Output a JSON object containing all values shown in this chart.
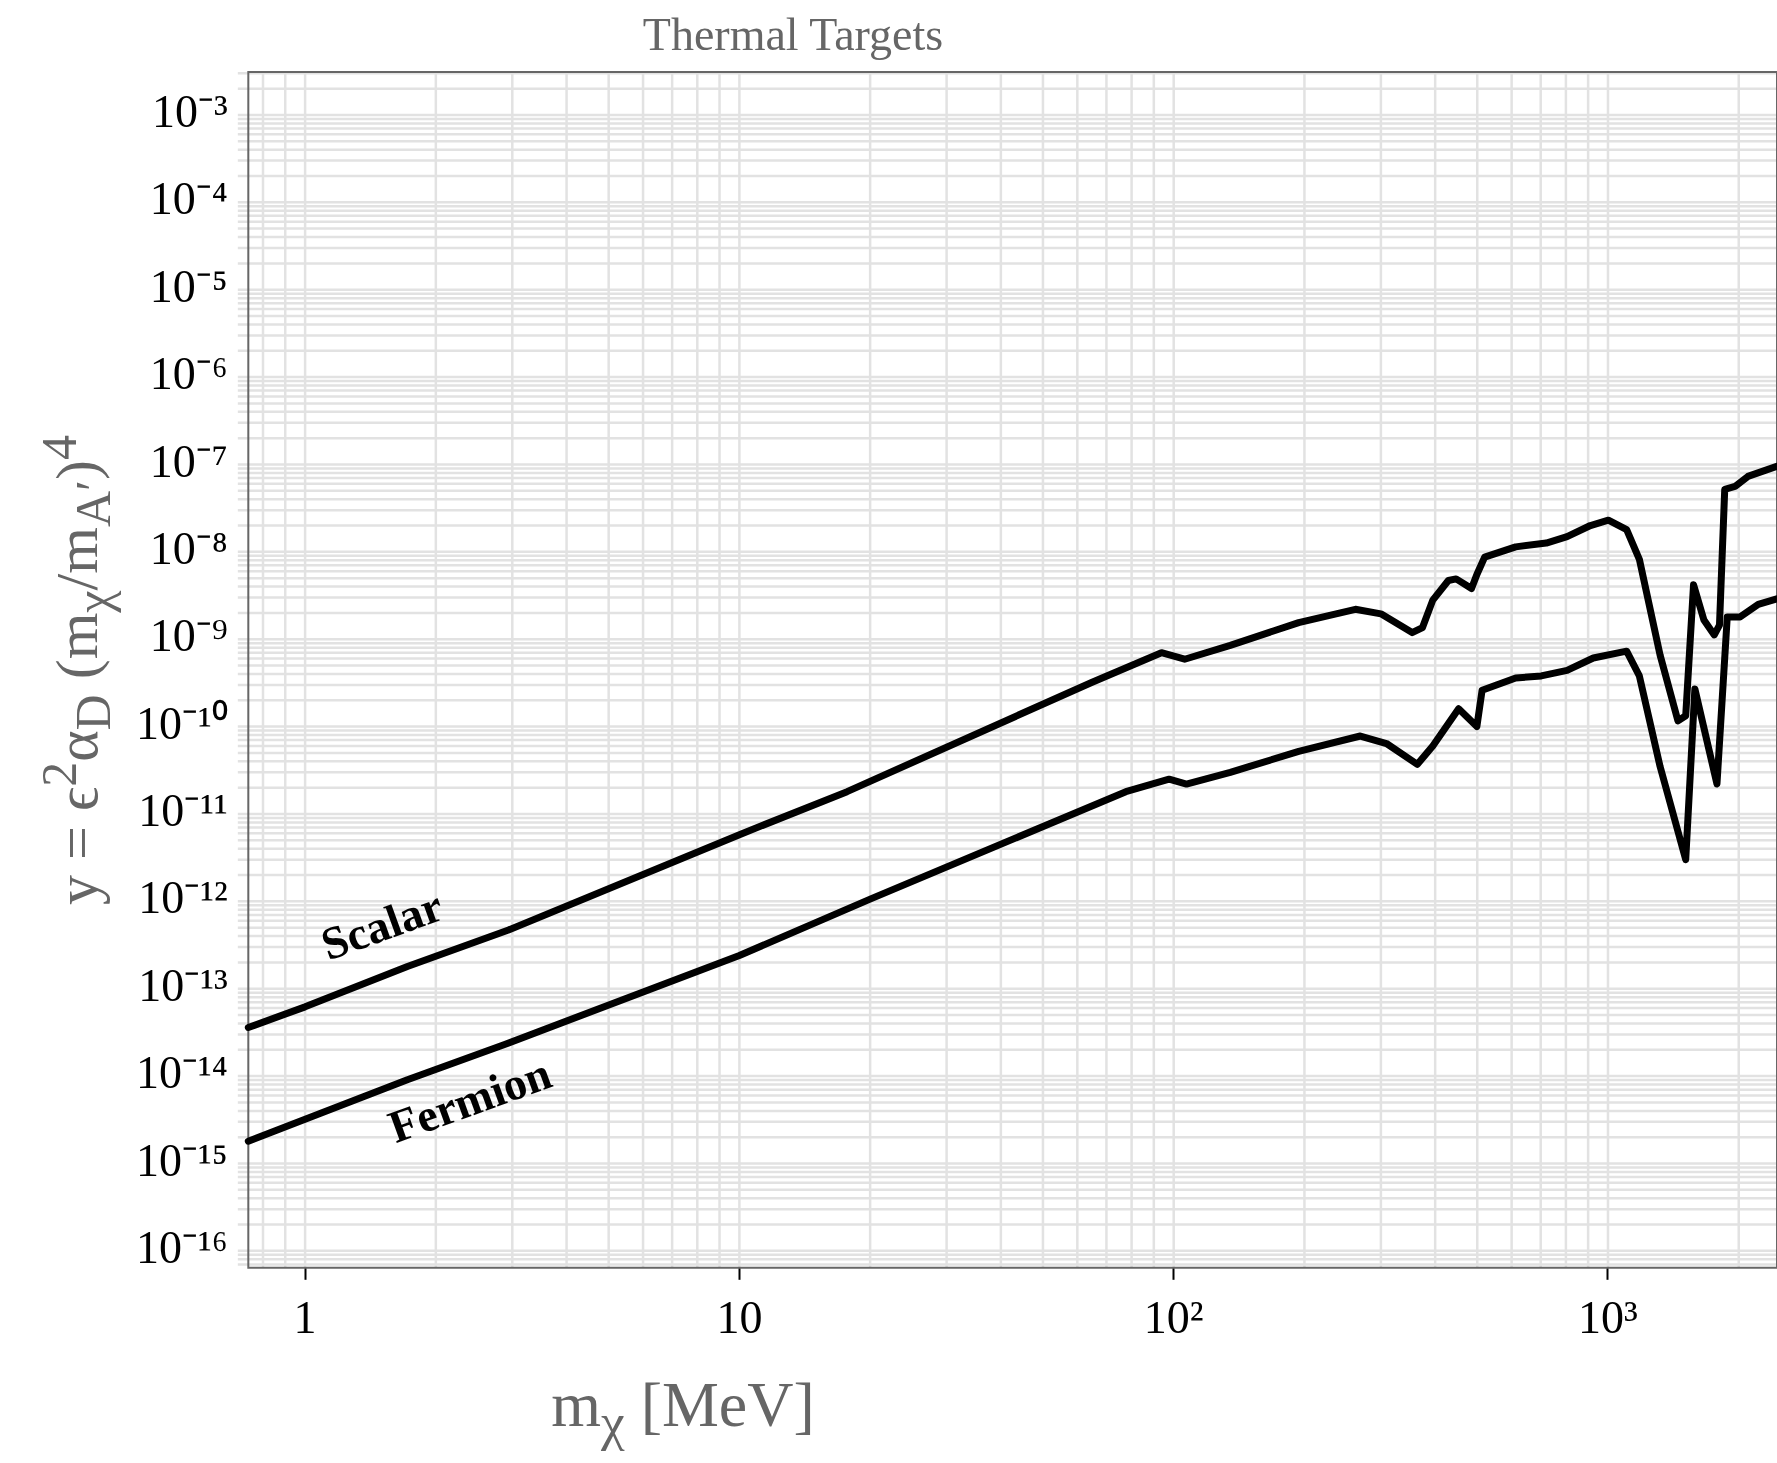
{
  "chart_data": {
    "type": "line",
    "title": "Thermal Targets",
    "xlabel": "m$_{χ}$ [MeV]",
    "ylabel": "y = ϵ$^{2}$α$_{D}$ (m$_{χ}$/m$_{A′}$)$^{4}$",
    "log": "xy",
    "grid": true,
    "marker": "none",
    "line_style": "solid",
    "xlim": [
      0.74,
      2450
    ],
    "ylim": [
      6.4e-17,
      0.0031
    ],
    "xticks": [
      1,
      10,
      {
        "value": 100,
        "label": "10²"
      },
      {
        "value": 1000,
        "label": "10³"
      }
    ],
    "yticks": [
      {
        "value": 0.001,
        "label": "10⁻³"
      },
      {
        "value": 0.0001,
        "label": "10⁻⁴"
      },
      {
        "value": 1e-05,
        "label": "10⁻⁵"
      },
      {
        "value": 1e-06,
        "label": "10⁻⁶"
      },
      {
        "value": 1e-07,
        "label": "10⁻⁷"
      },
      {
        "value": 1e-08,
        "label": "10⁻⁸"
      },
      {
        "value": 1e-09,
        "label": "10⁻⁹"
      },
      {
        "value": 1e-10,
        "label": "10⁻¹⁰"
      },
      {
        "value": 1e-11,
        "label": "10⁻¹¹"
      },
      {
        "value": 1e-12,
        "label": "10⁻¹²"
      },
      {
        "value": 1e-13,
        "label": "10⁻¹³"
      },
      {
        "value": 1e-14,
        "label": "10⁻¹⁴"
      },
      {
        "value": 1e-15,
        "label": "10⁻¹⁵"
      },
      {
        "value": 1e-16,
        "label": "10⁻¹⁶"
      }
    ],
    "series": [
      {
        "name": "Scalar",
        "color": "#000000",
        "x": [
          0.74,
          1,
          1.72,
          2.94,
          10,
          17.7,
          64.7,
          93.7,
          106,
          135,
          194,
          262,
          300,
          354,
          374,
          395,
          429,
          447,
          485,
          499,
          520,
          613,
          721,
          805,
          911,
          1002,
          1104,
          1181,
          1318,
          1449,
          1510,
          1574,
          1663,
          1757,
          1806,
          1857,
          1961,
          2100,
          2447
        ],
        "values": [
          3.6e-14,
          6.2e-14,
          1.8e-13,
          4.7e-13,
          5.8e-12,
          1.8e-11,
          3.2e-10,
          7e-10,
          5.9e-10,
          8.5e-10,
          1.55e-09,
          2.2e-09,
          1.95e-09,
          1.19e-09,
          1.36e-09,
          2.8e-09,
          4.7e-09,
          4.9e-09,
          3.8e-09,
          5.5e-09,
          8.7e-09,
          1.14e-08,
          1.26e-08,
          1.49e-08,
          2e-08,
          2.3e-08,
          1.8e-08,
          8.2e-09,
          6.6e-10,
          1.16e-10,
          1.33e-10,
          4.2e-09,
          1.66e-09,
          1.12e-09,
          1.45e-09,
          5.2e-08,
          5.6e-08,
          7.3e-08,
          9.5e-08
        ]
      },
      {
        "name": "Fermion",
        "color": "#000000",
        "x": [
          0.74,
          1,
          1.72,
          2.88,
          10,
          20,
          77.6,
          97.6,
          107,
          135,
          194,
          269,
          309,
          364,
          395,
          453,
          499,
          513,
          613,
          702,
          805,
          925,
          1104,
          1181,
          1318,
          1510,
          1585,
          1782,
          1882,
          2015,
          2218,
          2447
        ],
        "values": [
          1.8e-15,
          3.2e-15,
          9.1e-15,
          2.3e-14,
          2.4e-13,
          1.06e-12,
          1.8e-11,
          2.5e-11,
          2.2e-11,
          3e-11,
          5.2e-11,
          7.8e-11,
          6.4e-11,
          3.7e-11,
          6e-11,
          1.6e-10,
          1e-10,
          2.6e-10,
          3.6e-10,
          3.8e-10,
          4.4e-10,
          6.1e-10,
          7.3e-10,
          3.8e-10,
          3.5e-11,
          3e-12,
          2.7e-10,
          2.2e-11,
          1.8e-09,
          1.8e-09,
          2.5e-09,
          2.9e-09
        ]
      }
    ]
  }
}
